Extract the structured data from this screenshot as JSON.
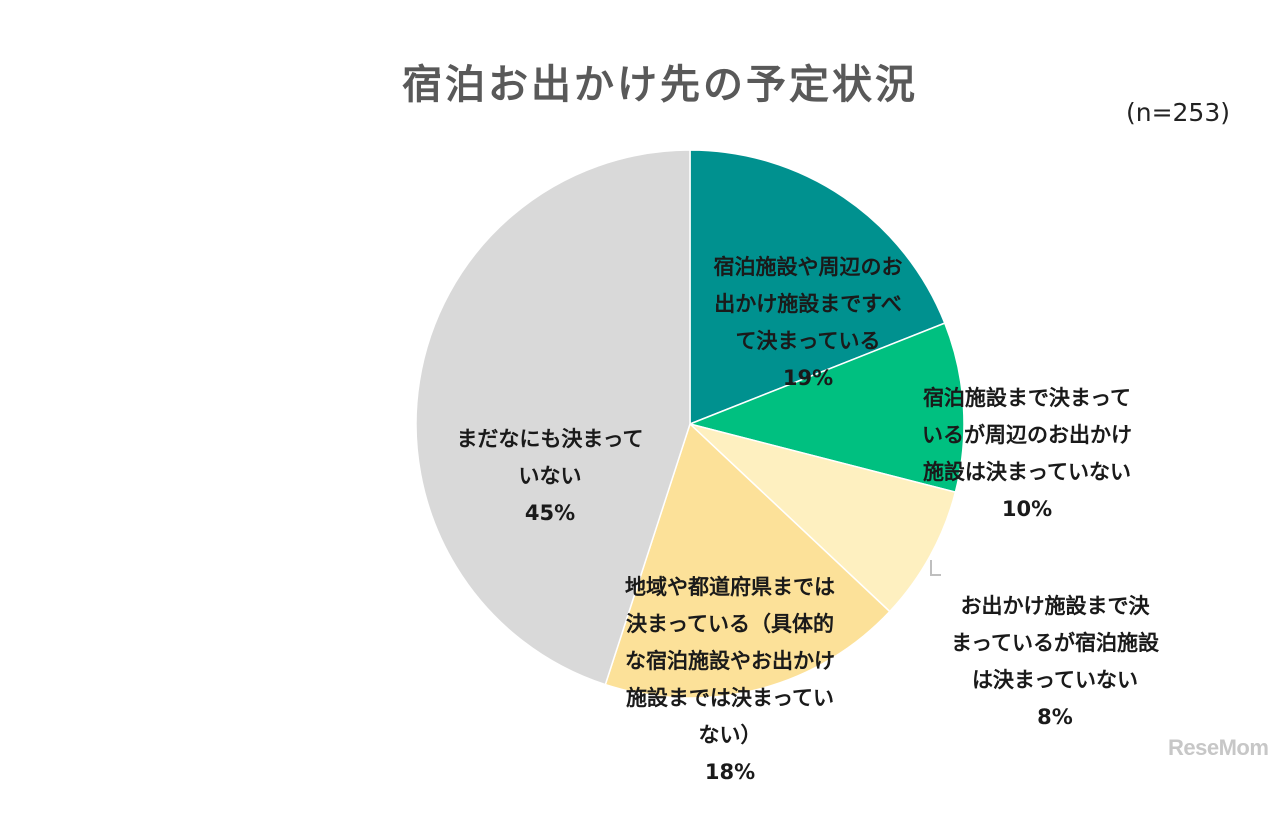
{
  "chart_data": {
    "type": "pie",
    "title": "宿泊お出かけ先の予定状況",
    "note": "(n=253)",
    "slices": [
      {
        "label": "宿泊施設や周辺のお\n出かけ施設まですべ\nて決まっている",
        "value": 19,
        "value_label": "19%",
        "color": "#00918F"
      },
      {
        "label": "宿泊施設まで決まって\nいるが周辺のお出かけ\n施設は決まっていない",
        "value": 10,
        "value_label": "10%",
        "color": "#00C080"
      },
      {
        "label": "お出かけ施設まで決\nまっているが宿泊施設\nは決まっていない",
        "value": 8,
        "value_label": "8%",
        "color": "#FEF0C0"
      },
      {
        "label": "地域や都道府県までは\n決まっている（具体的\nな宿泊施設やお出かけ\n施設までは決まってい\nない）",
        "value": 18,
        "value_label": "18%",
        "color": "#FCE199"
      },
      {
        "label": "まだなにも決まって\nいない",
        "value": 45,
        "value_label": "45%",
        "color": "#D9D9D9"
      }
    ]
  },
  "watermark": "ReseMom"
}
